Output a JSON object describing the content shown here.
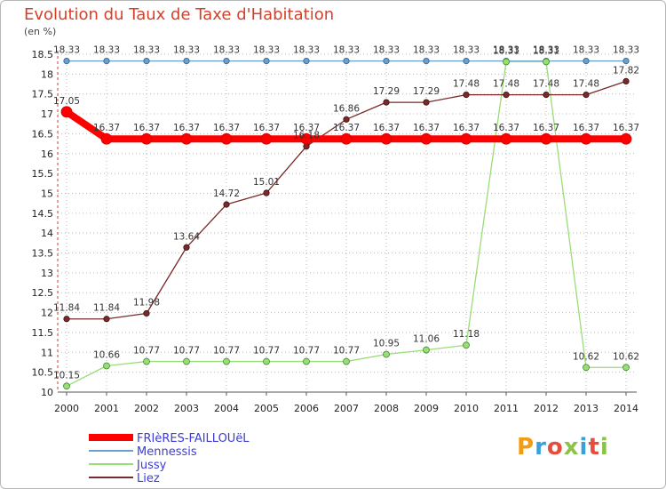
{
  "chart_data": {
    "type": "line",
    "title": "Evolution du Taux de Taxe d'Habitation",
    "unit_label": "(en %)",
    "x": [
      2000,
      2001,
      2002,
      2003,
      2004,
      2005,
      2006,
      2007,
      2008,
      2009,
      2010,
      2011,
      2012,
      2013,
      2014
    ],
    "ylim": [
      10,
      18.5
    ],
    "y_ticks": [
      10,
      10.5,
      11,
      11.5,
      12,
      12.5,
      13,
      13.5,
      14,
      14.5,
      15,
      15.5,
      16,
      16.5,
      17,
      17.5,
      18,
      18.5
    ],
    "grid": true,
    "legend_position": "bottom-left",
    "series": [
      {
        "name": "FRIèRES-FAILLOUëL",
        "color": "#ff0000",
        "values": [
          17.05,
          16.37,
          16.37,
          16.37,
          16.37,
          16.37,
          16.37,
          16.37,
          16.37,
          16.37,
          16.37,
          16.37,
          16.37,
          16.37,
          16.37
        ],
        "labels": [
          "17.05",
          "16.37",
          "16.37",
          "16.37",
          "16.37",
          "16.37",
          "16.37",
          "16.37",
          "16.37",
          "16.37",
          "16.37",
          "16.37",
          "16.37",
          "16.37",
          "16.37"
        ]
      },
      {
        "name": "Mennessis",
        "color": "#6b9fce",
        "values": [
          18.33,
          18.33,
          18.33,
          18.33,
          18.33,
          18.33,
          18.33,
          18.33,
          18.33,
          18.33,
          18.33,
          18.33,
          18.33,
          18.33,
          18.33
        ],
        "labels": [
          "18.33",
          "18.33",
          "18.33",
          "18.33",
          "18.33",
          "18.33",
          "18.33",
          "18.33",
          "18.33",
          "18.33",
          "18.33",
          "18.33",
          "18.33",
          "18.33",
          "18.33"
        ]
      },
      {
        "name": "Jussy",
        "color": "#99dd77",
        "values": [
          10.15,
          10.66,
          10.77,
          10.77,
          10.77,
          10.77,
          10.77,
          10.77,
          10.95,
          11.06,
          11.18,
          18.31,
          18.31,
          10.62,
          10.62
        ],
        "labels": [
          "10.15",
          "10.66",
          "10.77",
          "10.77",
          "10.77",
          "10.77",
          "10.77",
          "10.77",
          "10.95",
          "11.06",
          "11.18",
          "18.31",
          "18.31",
          "10.62",
          "10.62"
        ]
      },
      {
        "name": "Liez",
        "color": "#7a2a2a",
        "values": [
          11.84,
          11.84,
          11.98,
          13.64,
          14.72,
          15.01,
          16.18,
          16.86,
          17.29,
          17.29,
          17.48,
          17.48,
          17.48,
          17.48,
          17.82
        ],
        "labels": [
          "11.84",
          "11.84",
          "11.98",
          "13.64",
          "14.72",
          "15.01",
          "16.18",
          "16.86",
          "17.29",
          "17.29",
          "17.48",
          "17.48",
          "17.48",
          "17.48",
          "17.82"
        ]
      }
    ]
  },
  "logo": {
    "text": "Proxiti",
    "colors": [
      "#f39c12",
      "#3aa0d8",
      "#e84c3d",
      "#8bc34a",
      "#3aa0d8",
      "#e84c3d",
      "#8bc34a"
    ]
  }
}
